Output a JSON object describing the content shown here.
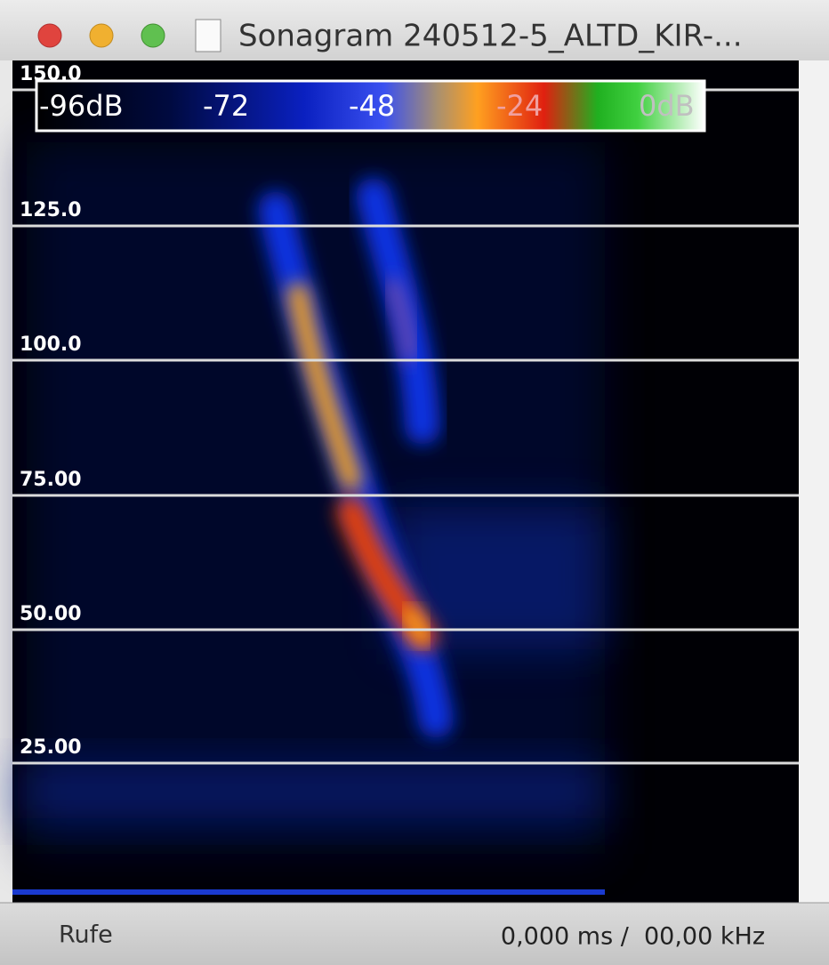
{
  "window": {
    "title": "Sonagram 240512-5_ALTD_KIR-..."
  },
  "sonagram": {
    "axis_labels": [
      "150.0",
      "125.0",
      "100.0",
      "75.00",
      "50.00",
      "25.00"
    ],
    "colorbar_labels": [
      "-96dB",
      "-72",
      "-48",
      "-24",
      "0dB"
    ]
  },
  "status": {
    "left": "Rufe",
    "right": "0,000 ms /  00,00 kHz"
  }
}
